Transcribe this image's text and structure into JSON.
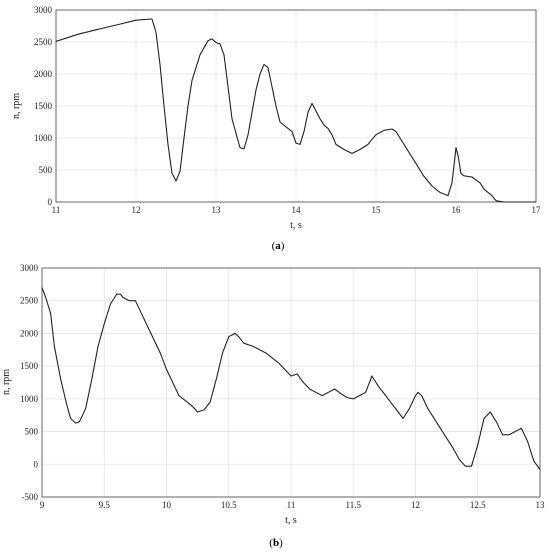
{
  "chart_data": [
    {
      "type": "line",
      "caption_open": "(",
      "caption_letter": "a",
      "caption_close": ")",
      "xlabel": "t, s",
      "ylabel": "n, rpm",
      "xlim": [
        11,
        17
      ],
      "ylim": [
        0,
        3000
      ],
      "xticks": [
        11,
        12,
        13,
        14,
        15,
        16,
        17
      ],
      "yticks": [
        0,
        500,
        1000,
        1500,
        2000,
        2500,
        3000
      ],
      "grid": true,
      "series": [
        {
          "x": [
            11.0,
            11.1,
            11.2,
            11.3,
            11.4,
            11.5,
            11.6,
            11.7,
            11.8,
            11.9,
            12.0,
            12.1,
            12.2,
            12.25,
            12.3,
            12.35,
            12.4,
            12.45,
            12.5,
            12.55,
            12.6,
            12.65,
            12.7,
            12.8,
            12.9,
            12.95,
            13.0,
            13.05,
            13.1,
            13.15,
            13.2,
            13.3,
            13.35,
            13.4,
            13.45,
            13.5,
            13.55,
            13.6,
            13.65,
            13.7,
            13.75,
            13.8,
            13.9,
            13.95,
            14.0,
            14.05,
            14.1,
            14.15,
            14.2,
            14.3,
            14.35,
            14.4,
            14.45,
            14.5,
            14.6,
            14.7,
            14.8,
            14.9,
            14.95,
            15.0,
            15.1,
            15.2,
            15.25,
            15.3,
            15.4,
            15.5,
            15.6,
            15.7,
            15.8,
            15.9,
            15.95,
            16.0,
            16.03,
            16.06,
            16.1,
            16.2,
            16.3,
            16.35,
            16.4,
            16.45,
            16.5,
            16.6,
            16.8,
            17.0
          ],
          "y": [
            2510,
            2550,
            2590,
            2630,
            2660,
            2690,
            2720,
            2750,
            2780,
            2810,
            2840,
            2850,
            2860,
            2650,
            2150,
            1500,
            900,
            450,
            330,
            480,
            1000,
            1500,
            1900,
            2300,
            2520,
            2550,
            2490,
            2470,
            2300,
            1800,
            1300,
            850,
            830,
            1050,
            1400,
            1750,
            2000,
            2150,
            2100,
            1800,
            1500,
            1250,
            1150,
            1100,
            920,
            900,
            1100,
            1400,
            1540,
            1300,
            1200,
            1150,
            1050,
            900,
            820,
            760,
            820,
            900,
            980,
            1050,
            1120,
            1140,
            1100,
            1000,
            800,
            600,
            400,
            250,
            150,
            100,
            300,
            850,
            700,
            450,
            410,
            390,
            300,
            200,
            150,
            100,
            20,
            0,
            0,
            0
          ]
        }
      ]
    },
    {
      "type": "line",
      "caption_open": "(",
      "caption_letter": "b",
      "caption_close": ")",
      "xlabel": "t, s",
      "ylabel": "n, rpm",
      "xlim": [
        9,
        13
      ],
      "ylim": [
        -500,
        3000
      ],
      "xticks": [
        9,
        9.5,
        10,
        10.5,
        11,
        11.5,
        12,
        12.5,
        13
      ],
      "yticks": [
        -500,
        0,
        500,
        1000,
        1500,
        2000,
        2500,
        3000
      ],
      "grid": true,
      "series": [
        {
          "x": [
            9.0,
            9.03,
            9.07,
            9.1,
            9.15,
            9.2,
            9.23,
            9.27,
            9.3,
            9.35,
            9.4,
            9.45,
            9.5,
            9.55,
            9.6,
            9.63,
            9.65,
            9.7,
            9.75,
            9.8,
            9.85,
            9.9,
            9.95,
            10.0,
            10.1,
            10.2,
            10.25,
            10.3,
            10.35,
            10.4,
            10.45,
            10.5,
            10.55,
            10.58,
            10.62,
            10.7,
            10.8,
            10.9,
            11.0,
            11.05,
            11.1,
            11.15,
            11.2,
            11.25,
            11.3,
            11.35,
            11.4,
            11.45,
            11.5,
            11.55,
            11.6,
            11.65,
            11.7,
            11.8,
            11.9,
            11.95,
            12.0,
            12.02,
            12.05,
            12.1,
            12.2,
            12.3,
            12.35,
            12.4,
            12.45,
            12.5,
            12.55,
            12.6,
            12.65,
            12.7,
            12.75,
            12.8,
            12.85,
            12.9,
            12.95,
            13.0
          ],
          "y": [
            2700,
            2550,
            2300,
            1800,
            1300,
            900,
            700,
            630,
            650,
            850,
            1300,
            1800,
            2150,
            2450,
            2600,
            2600,
            2550,
            2500,
            2500,
            2300,
            2100,
            1900,
            1700,
            1450,
            1050,
            900,
            800,
            830,
            950,
            1300,
            1700,
            1950,
            2000,
            1950,
            1850,
            1800,
            1700,
            1550,
            1350,
            1380,
            1250,
            1150,
            1100,
            1050,
            1100,
            1150,
            1080,
            1020,
            1000,
            1050,
            1100,
            1350,
            1200,
            950,
            700,
            850,
            1050,
            1100,
            1050,
            850,
            550,
            250,
            80,
            -30,
            -30,
            300,
            700,
            800,
            650,
            450,
            450,
            500,
            550,
            350,
            50,
            -80
          ]
        }
      ]
    }
  ]
}
